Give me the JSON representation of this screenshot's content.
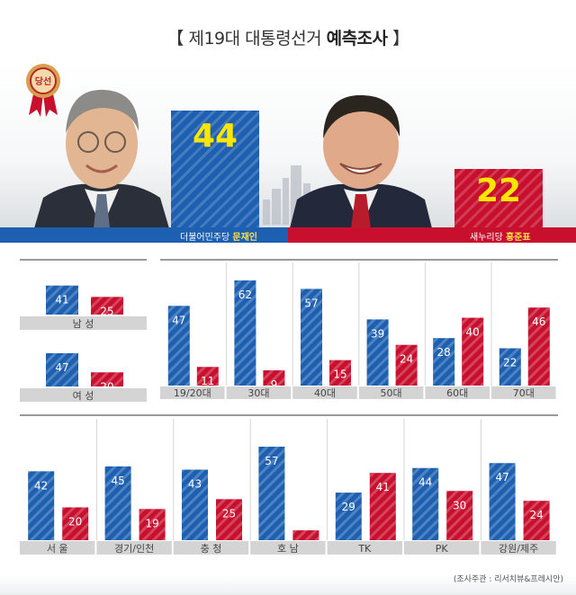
{
  "header": {
    "bracket_open": "【",
    "title_main": "제19대 대통령선거",
    "title_bold": "예측조사",
    "bracket_close": "】"
  },
  "badge": {
    "label": "당선"
  },
  "candidates": [
    {
      "party": "더불어민주당",
      "name": "문재인",
      "value": 44,
      "color": "#1d5fb0"
    },
    {
      "party": "새누리당",
      "name": "홍준표",
      "value": 22,
      "color": "#c8102e"
    }
  ],
  "colors": {
    "blue": "#1d5fb0",
    "red": "#c8102e",
    "label_bar": "#d4d4d4"
  },
  "chart_data": [
    {
      "type": "bar",
      "group": "gender",
      "categories": [
        "남 성",
        "여 성"
      ],
      "series": [
        {
          "values": [
            41,
            47
          ]
        },
        {
          "values": [
            25,
            20
          ]
        }
      ]
    },
    {
      "type": "bar",
      "group": "age",
      "categories": [
        "19/20대",
        "30대",
        "40대",
        "50대",
        "60대",
        "70대"
      ],
      "series": [
        {
          "values": [
            47,
            62,
            57,
            39,
            28,
            22
          ]
        },
        {
          "values": [
            11,
            9,
            15,
            24,
            40,
            46
          ]
        }
      ]
    },
    {
      "type": "bar",
      "group": "region",
      "categories": [
        "서 울",
        "경기/인천",
        "충 청",
        "호 남",
        "TK",
        "PK",
        "강원/제주"
      ],
      "series": [
        {
          "values": [
            42,
            45,
            43,
            57,
            29,
            44,
            47
          ]
        },
        {
          "values": [
            20,
            19,
            25,
            6,
            41,
            30,
            24
          ]
        }
      ]
    }
  ],
  "source": "(조사주관 : 리서치뷰&프레시안)"
}
